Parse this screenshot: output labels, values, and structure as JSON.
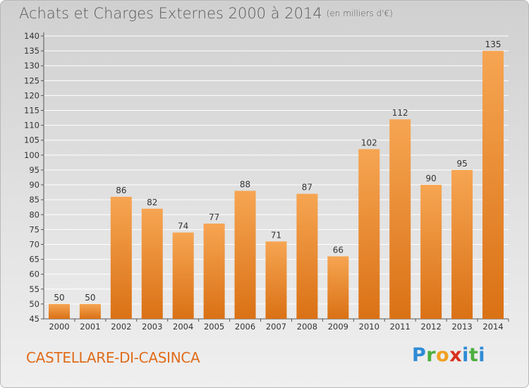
{
  "header": {
    "title": "Achats et Charges Externes 2000 à 2014",
    "subtitle": "(en milliers d'€)"
  },
  "footer": {
    "city": "CASTELLARE-DI-CASINCA",
    "brand": [
      "P",
      "r",
      "o",
      "x",
      "i",
      "t",
      "i"
    ]
  },
  "chart_data": {
    "type": "bar",
    "title": "Achats et Charges Externes 2000 à 2014",
    "subtitle": "(en milliers d'€)",
    "categories": [
      "2000",
      "2001",
      "2002",
      "2003",
      "2004",
      "2005",
      "2006",
      "2007",
      "2008",
      "2009",
      "2010",
      "2011",
      "2012",
      "2013",
      "2014"
    ],
    "values": [
      50,
      50,
      86,
      82,
      74,
      77,
      88,
      71,
      87,
      66,
      102,
      112,
      90,
      95,
      135
    ],
    "ylim": [
      45,
      140
    ],
    "yticks": [
      45,
      50,
      55,
      60,
      65,
      70,
      75,
      80,
      85,
      90,
      95,
      100,
      105,
      110,
      115,
      120,
      125,
      130,
      135,
      140
    ],
    "grid": true,
    "bar_color_top": "#f5a14f",
    "bar_color_bottom": "#dd7418",
    "grid_color": "#ffffff"
  }
}
